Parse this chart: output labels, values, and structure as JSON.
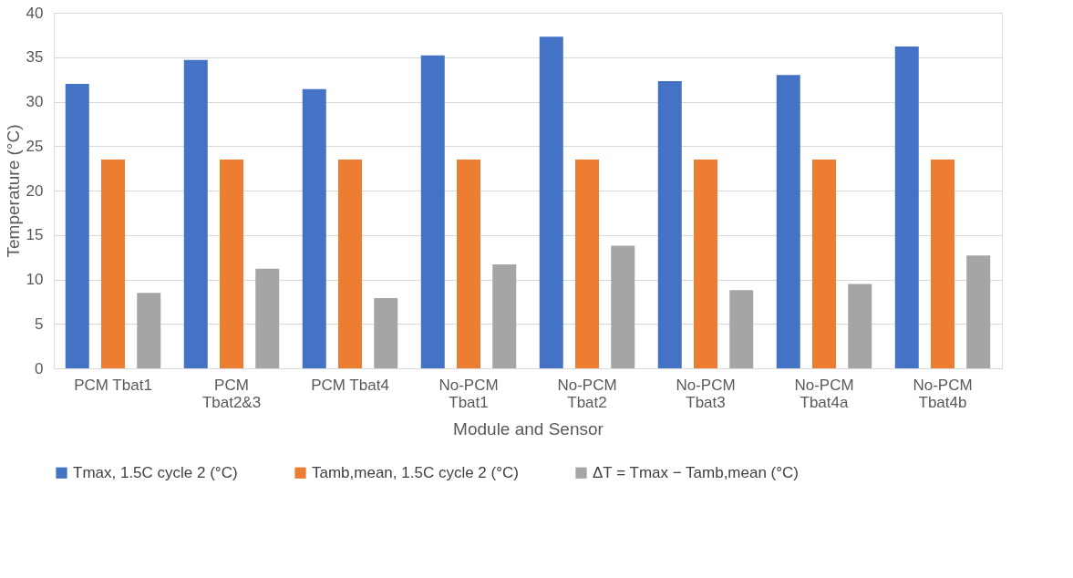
{
  "chart_data": {
    "type": "bar",
    "xlabel": "Module and Sensor",
    "ylabel": "Temperature (°C)",
    "categories": [
      "PCM Tbat1",
      "PCM Tbat2&3",
      "PCM Tbat4",
      "No-PCM Tbat1",
      "No-PCM Tbat2",
      "No-PCM Tbat3",
      "No-PCM Tbat4a",
      "No-PCM Tbat4b"
    ],
    "series": [
      {
        "name": "Tmax, 1.5C cycle 2 (°C)",
        "color": "#4472c4",
        "values": [
          32.0,
          34.7,
          31.4,
          35.2,
          37.3,
          32.3,
          33.0,
          36.2
        ]
      },
      {
        "name": "Tamb,mean, 1.5C cycle 2 (°C)",
        "color": "#ed7d31",
        "values": [
          23.5,
          23.5,
          23.5,
          23.5,
          23.5,
          23.5,
          23.5,
          23.5
        ]
      },
      {
        "name": "ΔT = Tmax − Tamb,mean (°C)",
        "color": "#a5a5a5",
        "values": [
          8.5,
          11.2,
          7.9,
          11.7,
          13.8,
          8.8,
          9.5,
          12.7
        ]
      }
    ],
    "ylim": [
      0,
      40
    ],
    "yticks": [
      0,
      5,
      10,
      15,
      20,
      25,
      30,
      35,
      40
    ],
    "grid": "y",
    "legend": "bottom"
  }
}
